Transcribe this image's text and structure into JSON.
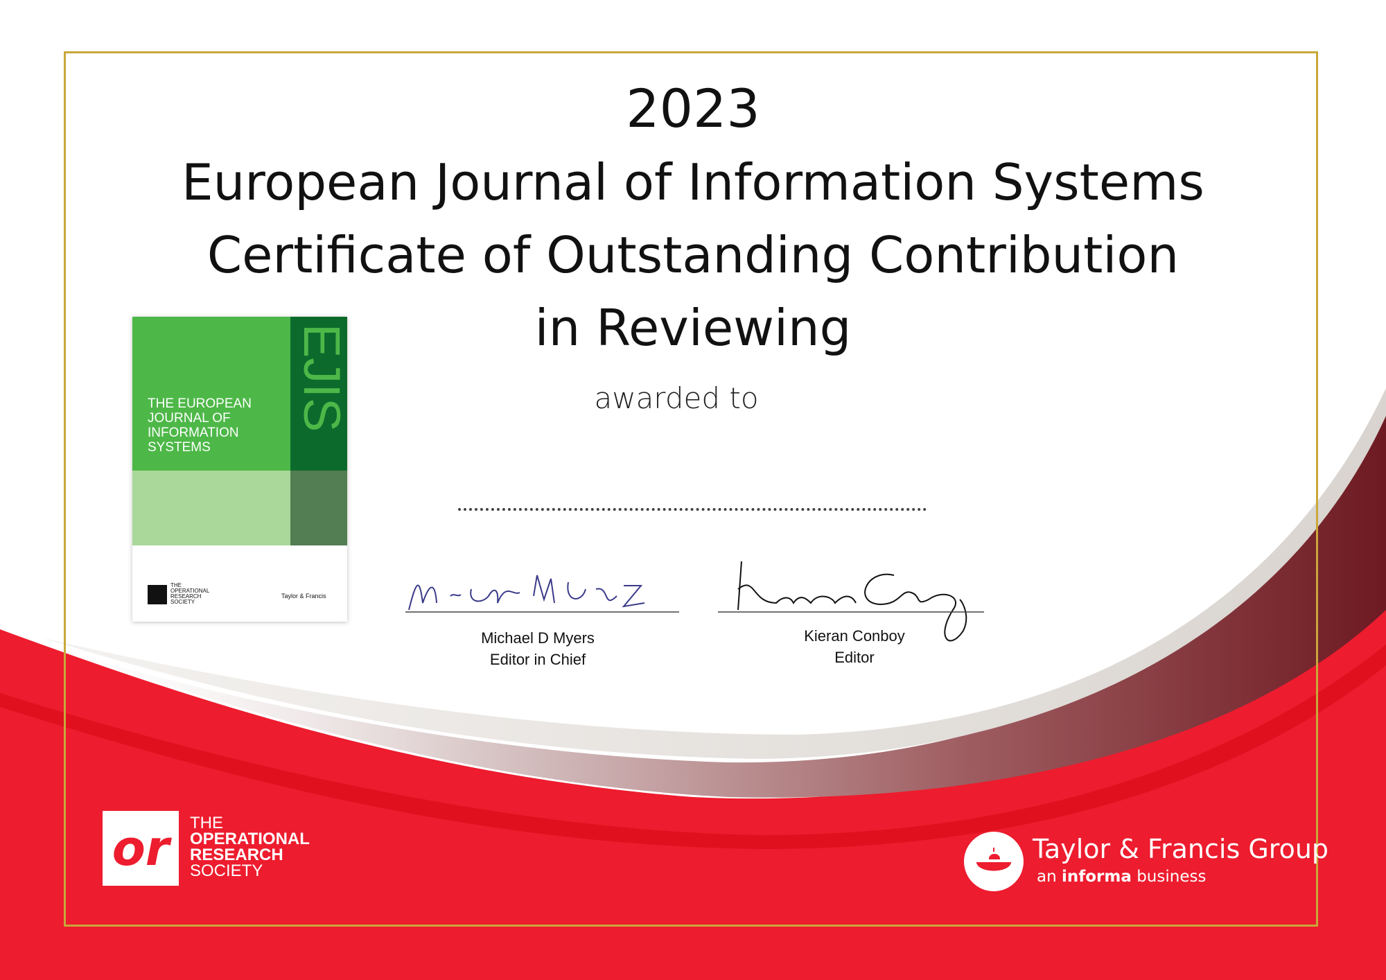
{
  "header": {
    "year": "2023",
    "title_lines": [
      "European Journal of Information Systems",
      "Certificate of Outstanding Contribution",
      "in Reviewing"
    ]
  },
  "award": {
    "awarded_to": "awarded to"
  },
  "signatories": [
    {
      "name": "Michael D Myers",
      "role": "Editor in Chief"
    },
    {
      "name": "Kieran Conboy",
      "role": "Editor"
    }
  ],
  "cover": {
    "title_lines": [
      "THE EUROPEAN",
      "JOURNAL OF",
      "INFORMATION",
      "SYSTEMS"
    ],
    "abbreviation": "EJIS",
    "society_lines": [
      "THE",
      "OPERATIONAL",
      "RESEARCH",
      "SOCIETY"
    ],
    "publisher": "Taylor & Francis"
  },
  "society_logo": {
    "mark": "or",
    "lines": [
      "THE",
      "OPERATIONAL",
      "RESEARCH",
      "SOCIETY"
    ]
  },
  "publisher_logo": {
    "name": "Taylor & Francis Group",
    "tagline_prefix": "an",
    "tagline_brand": "informa",
    "tagline_suffix": "business"
  }
}
